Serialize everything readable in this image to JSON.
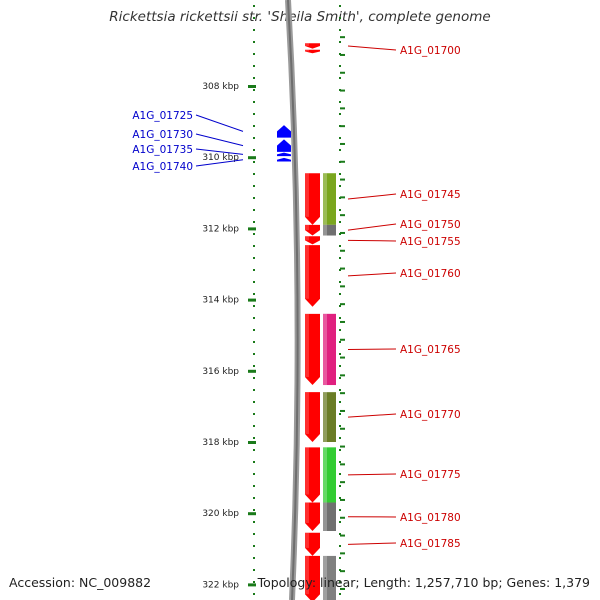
{
  "title": "Rickettsia rickettsii str. 'Sheila Smith', complete genome",
  "accession": "Accession: NC_009882",
  "topology": "Topology: linear; Length: 1,257,710 bp; Genes: 1,379",
  "colors": {
    "forward_gene": "#ff0000",
    "reverse_gene": "#0000ff",
    "label_forward": "#cc0000",
    "label_reverse": "#0000cc",
    "tick": "#1a7a1a",
    "backbone": "#808080"
  },
  "scale": {
    "unit": "kbp",
    "ticks": [
      {
        "kbp": 308,
        "label": "308 kbp"
      },
      {
        "kbp": 310,
        "label": "310 kbp"
      },
      {
        "kbp": 312,
        "label": "312 kbp"
      },
      {
        "kbp": 314,
        "label": "314 kbp"
      },
      {
        "kbp": 316,
        "label": "316 kbp"
      },
      {
        "kbp": 318,
        "label": "318 kbp"
      },
      {
        "kbp": 320,
        "label": "320 kbp"
      },
      {
        "kbp": 322,
        "label": "322 kbp"
      }
    ]
  },
  "reverse_genes": [
    {
      "id": "A1G_01725",
      "start_kbp": 309.1,
      "end_kbp": 309.45
    },
    {
      "id": "A1G_01730",
      "start_kbp": 309.5,
      "end_kbp": 309.85
    },
    {
      "id": "A1G_01735",
      "start_kbp": 309.87,
      "end_kbp": 309.97
    },
    {
      "id": "A1G_01740",
      "start_kbp": 310.02,
      "end_kbp": 310.12
    }
  ],
  "forward_genes": [
    {
      "id": "A1G_01700",
      "start_kbp": 306.8,
      "end_kbp": 306.95
    },
    {
      "id": "",
      "start_kbp": 306.98,
      "end_kbp": 307.08
    },
    {
      "id": "A1G_01745",
      "start_kbp": 310.45,
      "end_kbp": 311.9
    },
    {
      "id": "A1G_01750",
      "start_kbp": 311.9,
      "end_kbp": 312.2
    },
    {
      "id": "A1G_01755",
      "start_kbp": 312.22,
      "end_kbp": 312.45
    },
    {
      "id": "A1G_01760",
      "start_kbp": 312.47,
      "end_kbp": 314.2
    },
    {
      "id": "A1G_01765",
      "start_kbp": 314.4,
      "end_kbp": 316.4
    },
    {
      "id": "A1G_01770",
      "start_kbp": 316.6,
      "end_kbp": 318.0
    },
    {
      "id": "A1G_01775",
      "start_kbp": 318.15,
      "end_kbp": 319.7
    },
    {
      "id": "A1G_01780",
      "start_kbp": 319.7,
      "end_kbp": 320.5
    },
    {
      "id": "A1G_01785",
      "start_kbp": 320.55,
      "end_kbp": 321.2
    },
    {
      "id": "",
      "start_kbp": 321.2,
      "end_kbp": 322.5
    }
  ],
  "features": [
    {
      "start_kbp": 310.45,
      "end_kbp": 311.9,
      "color": "#7aa61e"
    },
    {
      "start_kbp": 311.9,
      "end_kbp": 312.2,
      "color": "#707070"
    },
    {
      "start_kbp": 314.4,
      "end_kbp": 316.4,
      "color": "#e0207f"
    },
    {
      "start_kbp": 316.6,
      "end_kbp": 318.0,
      "color": "#6b7d26"
    },
    {
      "start_kbp": 318.15,
      "end_kbp": 319.7,
      "color": "#33cc33"
    },
    {
      "start_kbp": 319.7,
      "end_kbp": 320.5,
      "color": "#707070"
    },
    {
      "start_kbp": 321.2,
      "end_kbp": 322.5,
      "color": "#808080"
    }
  ],
  "forward_label_order": [
    "A1G_01700",
    "A1G_01745",
    "A1G_01750",
    "A1G_01755",
    "A1G_01760",
    "A1G_01765",
    "A1G_01770",
    "A1G_01775",
    "A1G_01780",
    "A1G_01785"
  ],
  "reverse_label_order": [
    "A1G_01725",
    "A1G_01730",
    "A1G_01735",
    "A1G_01740"
  ]
}
